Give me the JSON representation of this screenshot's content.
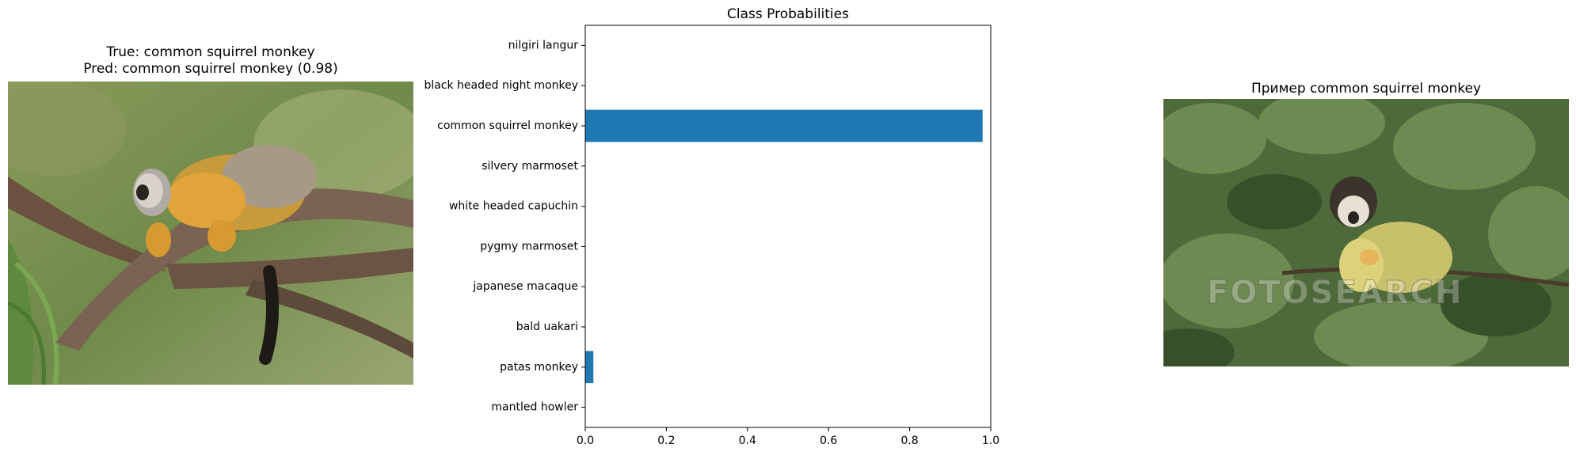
{
  "left_panel": {
    "title_line1": "True: common squirrel monkey",
    "title_line2": "Pred: common squirrel monkey (0.98)",
    "image_alt": "common squirrel monkey on a branch"
  },
  "right_panel": {
    "title": "Пример common squirrel monkey",
    "watermark": "FOTOSEARCH"
  },
  "chart_data": {
    "type": "bar",
    "orientation": "horizontal",
    "title": "Class Probabilities",
    "xlabel": "",
    "ylabel": "",
    "xlim": [
      0,
      1.0
    ],
    "xticks": [
      "0.0",
      "0.2",
      "0.4",
      "0.6",
      "0.8",
      "1.0"
    ],
    "categories": [
      "nilgiri langur",
      "black headed night monkey",
      "common squirrel monkey",
      "silvery marmoset",
      "white headed capuchin",
      "pygmy marmoset",
      "japanese macaque",
      "bald uakari",
      "patas monkey",
      "mantled howler"
    ],
    "values": [
      0.0,
      0.0,
      0.98,
      0.0,
      0.0,
      0.0,
      0.0,
      0.0,
      0.02,
      0.0
    ],
    "bar_color": "#1f77b4",
    "grid": false
  }
}
